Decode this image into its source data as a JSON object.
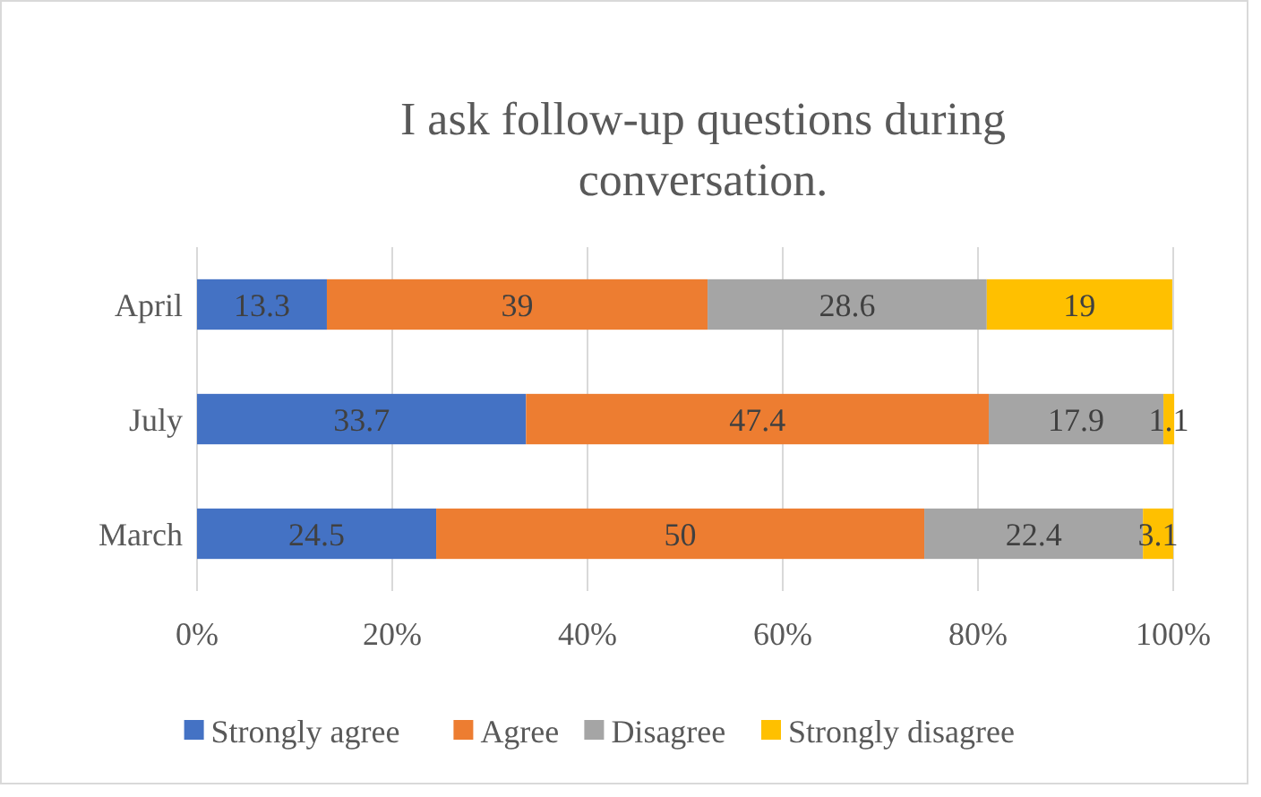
{
  "chart_data": {
    "type": "bar",
    "orientation": "horizontal",
    "stacked": true,
    "title": "I ask follow-up questions during conversation.",
    "categories": [
      "April",
      "July",
      "March"
    ],
    "series": [
      {
        "name": "Strongly agree",
        "color": "#4472c4",
        "values": [
          13.3,
          33.7,
          24.5
        ]
      },
      {
        "name": "Agree",
        "color": "#ed7d31",
        "values": [
          39,
          47.4,
          50
        ]
      },
      {
        "name": "Disagree",
        "color": "#a5a5a5",
        "values": [
          28.6,
          17.9,
          22.4
        ]
      },
      {
        "name": "Strongly disagree",
        "color": "#ffc000",
        "values": [
          19,
          1.1,
          3.1
        ]
      }
    ],
    "xlim": [
      0,
      100
    ],
    "xticks": [
      {
        "value": 0,
        "label": "0%"
      },
      {
        "value": 20,
        "label": "20%"
      },
      {
        "value": 40,
        "label": "40%"
      },
      {
        "value": 60,
        "label": "60%"
      },
      {
        "value": 80,
        "label": "80%"
      },
      {
        "value": 100,
        "label": "100%"
      }
    ],
    "grid": "x",
    "legend": "bottom",
    "data_labels": true
  }
}
